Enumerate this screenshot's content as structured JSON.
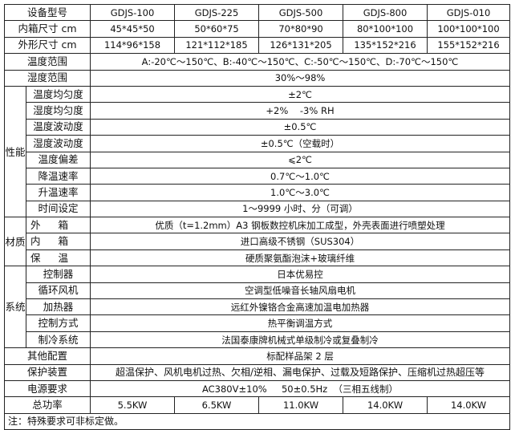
{
  "header": {
    "label": "设备型号",
    "models": [
      "GDJS-100",
      "GDJS-225",
      "GDJS-500",
      "GDJS-800",
      "GDJS-010"
    ]
  },
  "inner_size": {
    "label": "内箱尺寸 cm",
    "values": [
      "45*45*50",
      "50*60*75",
      "70*80*90",
      "80*100*100",
      "100*100*100"
    ]
  },
  "outer_size": {
    "label": "外形尺寸 cm",
    "values": [
      "114*96*158",
      "121*112*185",
      "126*131*205",
      "135*152*216",
      "155*152*216"
    ]
  },
  "temp_range": {
    "label": "温度范围",
    "value": "A:-20℃～150℃、B:-40℃～150℃、C:-50℃～150℃、D:-70℃～150℃"
  },
  "humidity_range": {
    "label": "湿度范围",
    "value": "30%～98%"
  },
  "performance": {
    "group": "性能",
    "rows": [
      {
        "label": "温度均匀度",
        "value": "±2℃"
      },
      {
        "label": "湿度均匀度",
        "value": "+2%    -3% RH"
      },
      {
        "label": "温度波动度",
        "value": "±0.5℃"
      },
      {
        "label": "湿度波动度",
        "value": "±0.5℃（空载时）"
      },
      {
        "label": "温度偏差",
        "value": "⩽2℃"
      },
      {
        "label": "降温速率",
        "value": "0.7℃～1.0℃"
      },
      {
        "label": "升温速率",
        "value": "1.0℃～3.0℃"
      },
      {
        "label": "时间设定",
        "value": "1～9999 小时、分（可调）"
      }
    ]
  },
  "material": {
    "group": "材质",
    "rows": [
      {
        "label": "外箱",
        "value": "优质（t=1.2mm）A3 钢板数控机床加工成型，外壳表面进行喷塑处理"
      },
      {
        "label": "内箱",
        "value": "进口高级不锈钢（SUS304）"
      },
      {
        "label": "保温",
        "value": "硬质聚氨酯泡沫+玻璃纤维"
      }
    ]
  },
  "system": {
    "group": "系统",
    "rows": [
      {
        "label": "控制器",
        "value": "日本优易控"
      },
      {
        "label": "循环风机",
        "value": "空调型低噪音长轴风扇电机"
      },
      {
        "label": "加热器",
        "value": "远红外镍铬合金高速加温电加热器"
      },
      {
        "label": "控制方式",
        "value": "热平衡调温方式"
      },
      {
        "label": "制冷系统",
        "value": "法国泰康牌机械式单级制冷或复叠制冷"
      }
    ]
  },
  "other_config": {
    "label": "其他配置",
    "value": "标配样品架 2 层"
  },
  "protection": {
    "label": "保护装置",
    "value": "超温保护、风机电机过热、欠相/逆相、漏电保护、过载及短路保护、压缩机过热超压等"
  },
  "power_req": {
    "label": "电源要求",
    "value": "AC380V±10%     50±0.5Hz  （三相五线制）"
  },
  "total_power": {
    "label": "总功率",
    "values": [
      "5.5KW",
      "6.5KW",
      "11.0KW",
      "14.0KW",
      "14.0KW"
    ]
  },
  "note": "注：特殊要求可非标定做。"
}
